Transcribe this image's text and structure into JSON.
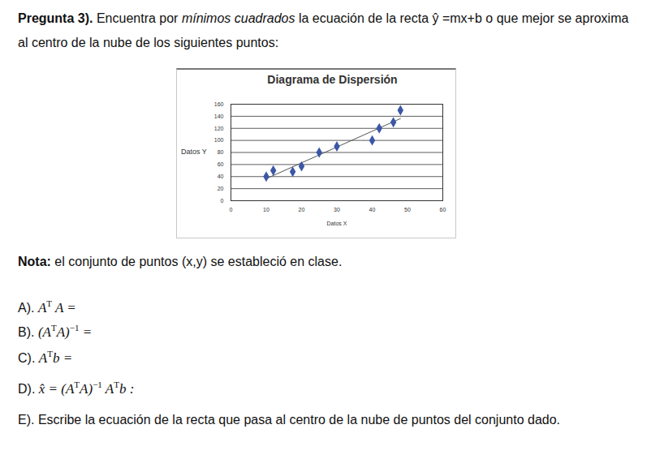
{
  "question": {
    "number": "Pregunta 3).",
    "parts": [
      {
        "text": " Encuentra por "
      },
      {
        "text": "mínimos cuadrados",
        "italic": true
      },
      {
        "text": " la ecuación de la recta "
      },
      {
        "text": "ŷ =mx+b o  que mejor se aproxima al centro de la nube de los siguientes puntos:"
      }
    ]
  },
  "chart_data": {
    "type": "scatter",
    "title": "Diagrama de Dispersión",
    "x_label": "Datos X",
    "y_label": "Datos Y",
    "x": [
      10,
      12,
      17.5,
      20,
      25,
      30,
      40,
      42,
      46,
      48
    ],
    "values": [
      40,
      50,
      48,
      57,
      80,
      90,
      100,
      120,
      130,
      150
    ],
    "xlim": [
      0,
      60
    ],
    "xticks": [
      0,
      10,
      20,
      30,
      40,
      50,
      60
    ],
    "ylim": [
      0,
      160
    ],
    "yticks": [
      0,
      20,
      40,
      60,
      80,
      100,
      120,
      140,
      160
    ],
    "grid": true,
    "color": "#3b57a6",
    "marker": "diamond"
  },
  "note": {
    "label": "Nota:",
    "text": " el conjunto de puntos (x,y) se estableció en clase."
  },
  "items": [
    {
      "label": "A).",
      "expr": [
        {
          "t": "A",
          "sup": "T"
        },
        {
          "t": " A ="
        }
      ]
    },
    {
      "label": "B).",
      "expr": [
        {
          "t": "(A",
          "sup": "T"
        },
        {
          "t": "A)",
          "sup": "−1"
        },
        {
          "t": " ="
        }
      ]
    },
    {
      "label": "C).",
      "expr": [
        {
          "t": "A",
          "sup": "T"
        },
        {
          "t": "b ="
        }
      ]
    },
    {
      "label": "D).",
      "expr": [
        {
          "t": "x̂ = (A",
          "sup": "T"
        },
        {
          "t": "A)",
          "sup": "−1"
        },
        {
          "t": " A",
          "sup": "T"
        },
        {
          "t": "b :"
        }
      ]
    },
    {
      "label": "E).",
      "text": " Escribe la ecuación de la recta que pasa al centro de la nube de puntos del conjunto dado."
    }
  ]
}
